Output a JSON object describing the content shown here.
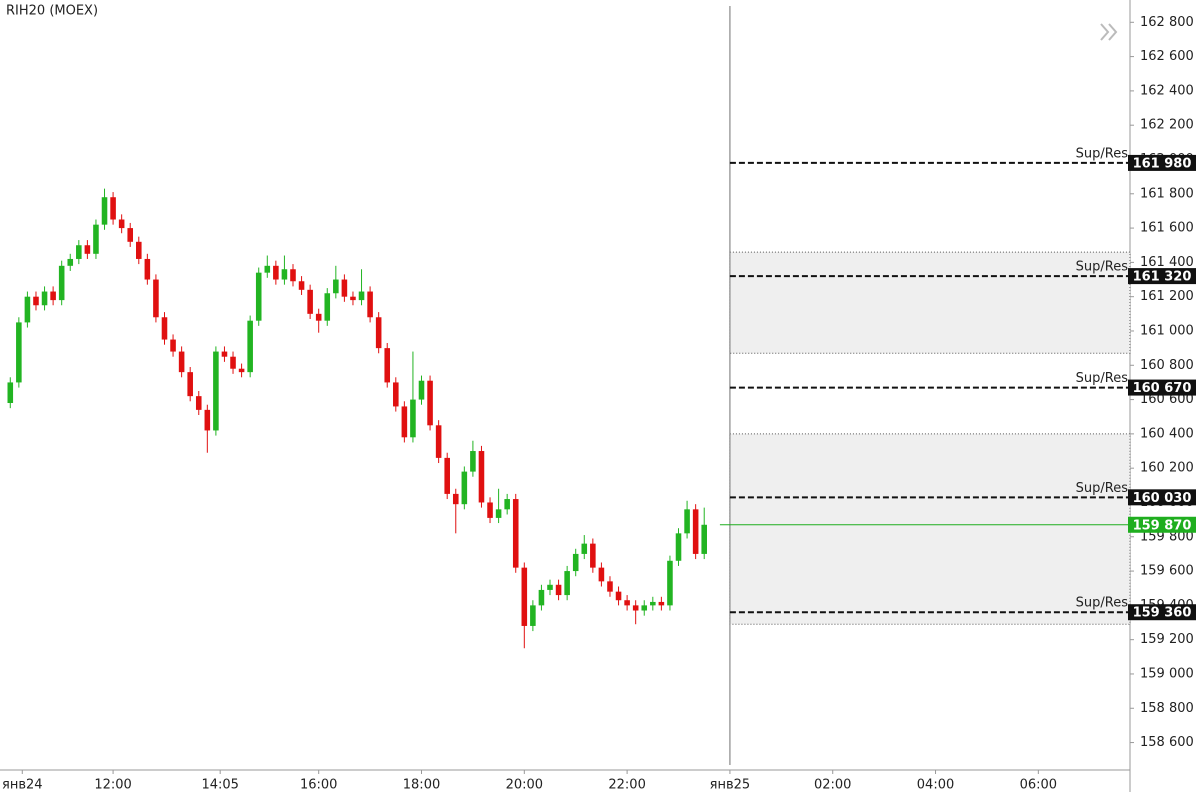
{
  "chart_data": {
    "type": "candlestick",
    "title": "RIH20 (MOEX)",
    "up_color": "#22b422",
    "down_color": "#e01010",
    "x": [
      600,
      610,
      620,
      630,
      640,
      650,
      660,
      670,
      680,
      690,
      700,
      710,
      720,
      730,
      740,
      750,
      760,
      770,
      780,
      790,
      800,
      810,
      820,
      830,
      840,
      850,
      860,
      870,
      880,
      890,
      900,
      910,
      920,
      930,
      940,
      950,
      960,
      970,
      980,
      990,
      1000,
      1010,
      1020,
      1030,
      1040,
      1050,
      1060,
      1070,
      1080,
      1090,
      1100,
      1110,
      1120,
      1130,
      1140,
      1150,
      1160,
      1170,
      1180,
      1190,
      1200,
      1210,
      1220,
      1230,
      1240,
      1250,
      1260,
      1270,
      1280,
      1290,
      1300,
      1310,
      1320,
      1330,
      1340,
      1350,
      1360,
      1370,
      1380,
      1390,
      1400,
      1410
    ],
    "open": [
      160580,
      160700,
      161050,
      161200,
      161150,
      161230,
      161180,
      161380,
      161420,
      161500,
      161450,
      161620,
      161780,
      161650,
      161600,
      161520,
      161420,
      161300,
      161080,
      160950,
      160880,
      160760,
      160620,
      160540,
      160420,
      160880,
      160850,
      160780,
      160760,
      161060,
      161340,
      161380,
      161300,
      161360,
      161290,
      161240,
      161100,
      161060,
      161220,
      161300,
      161200,
      161180,
      161230,
      161080,
      160900,
      160700,
      160560,
      160380,
      160600,
      160710,
      160450,
      160260,
      160050,
      159990,
      160180,
      160300,
      160000,
      159910,
      159960,
      160020,
      159620,
      159280,
      159400,
      159490,
      159520,
      159460,
      159600,
      159700,
      159760,
      159620,
      159540,
      159480,
      159430,
      159400,
      159370,
      159400,
      159420,
      159400,
      159660,
      159820,
      159960,
      159700
    ],
    "high": [
      160730,
      161080,
      161230,
      161230,
      161260,
      161260,
      161410,
      161450,
      161530,
      161530,
      161650,
      161830,
      161810,
      161680,
      161630,
      161550,
      161450,
      161330,
      161110,
      160980,
      160910,
      160790,
      160650,
      160570,
      160910,
      160910,
      160880,
      160810,
      161090,
      161370,
      161440,
      161410,
      161440,
      161390,
      161320,
      161270,
      161130,
      161250,
      161380,
      161330,
      161230,
      161360,
      161260,
      161110,
      160930,
      160730,
      160590,
      160880,
      160740,
      160740,
      160480,
      160290,
      160080,
      160210,
      160360,
      160330,
      160030,
      160080,
      160050,
      160050,
      159650,
      159430,
      159520,
      159550,
      159550,
      159630,
      159730,
      159810,
      159790,
      159650,
      159570,
      159510,
      159460,
      159430,
      159430,
      159450,
      159450,
      159690,
      159850,
      160010,
      159990,
      159970
    ],
    "low": [
      160550,
      160670,
      161020,
      161120,
      161120,
      161150,
      161150,
      161350,
      161390,
      161420,
      161420,
      161590,
      161620,
      161570,
      161490,
      161390,
      161270,
      161050,
      160920,
      160850,
      160730,
      160590,
      160510,
      160290,
      160390,
      160820,
      160750,
      160730,
      160730,
      161030,
      161310,
      161270,
      161270,
      161260,
      161210,
      161070,
      160990,
      161030,
      161190,
      161170,
      161150,
      161150,
      161050,
      160870,
      160670,
      160530,
      160350,
      160350,
      160570,
      160420,
      160230,
      160020,
      159820,
      159960,
      160150,
      159970,
      159880,
      159880,
      159930,
      159590,
      159150,
      159250,
      159370,
      159460,
      159430,
      159430,
      159570,
      159670,
      159590,
      159510,
      159450,
      159400,
      159370,
      159290,
      159340,
      159370,
      159370,
      159370,
      159630,
      159790,
      159670,
      159670
    ],
    "close": [
      160700,
      161050,
      161200,
      161150,
      161230,
      161180,
      161380,
      161420,
      161500,
      161450,
      161620,
      161780,
      161650,
      161600,
      161520,
      161420,
      161300,
      161080,
      160950,
      160880,
      160760,
      160620,
      160540,
      160420,
      160880,
      160850,
      160780,
      160760,
      161060,
      161340,
      161380,
      161300,
      161360,
      161290,
      161240,
      161100,
      161060,
      161220,
      161300,
      161200,
      161180,
      161230,
      161080,
      160900,
      160700,
      160560,
      160380,
      160600,
      160710,
      160450,
      160260,
      160050,
      159990,
      160180,
      160300,
      160000,
      159910,
      159960,
      160020,
      159620,
      159280,
      159400,
      159490,
      159520,
      159460,
      159600,
      159700,
      159760,
      159620,
      159540,
      159480,
      159430,
      159400,
      159370,
      159400,
      159420,
      159400,
      159660,
      159820,
      159960,
      159700,
      159870
    ],
    "xlim": [
      588,
      1907
    ],
    "xticks": [
      {
        "value": 614,
        "label": "янв24"
      },
      {
        "value": 720,
        "label": "12:00"
      },
      {
        "value": 845,
        "label": "14:05"
      },
      {
        "value": 960,
        "label": "16:00"
      },
      {
        "value": 1080,
        "label": "18:00"
      },
      {
        "value": 1200,
        "label": "20:00"
      },
      {
        "value": 1320,
        "label": "22:00"
      },
      {
        "value": 1440,
        "label": "янв25"
      },
      {
        "value": 1560,
        "label": "02:00"
      },
      {
        "value": 1680,
        "label": "04:00"
      },
      {
        "value": 1800,
        "label": "06:00"
      }
    ],
    "ylim": [
      158440,
      162930
    ],
    "yticks": [
      {
        "value": 158600,
        "label": "158 600"
      },
      {
        "value": 158800,
        "label": "158 800"
      },
      {
        "value": 159000,
        "label": "159 000"
      },
      {
        "value": 159200,
        "label": "159 200"
      },
      {
        "value": 159400,
        "label": "159 400"
      },
      {
        "value": 159600,
        "label": "159 600"
      },
      {
        "value": 159800,
        "label": "159 800"
      },
      {
        "value": 160000,
        "label": "160 000"
      },
      {
        "value": 160200,
        "label": "160 200"
      },
      {
        "value": 160400,
        "label": "160 400"
      },
      {
        "value": 160600,
        "label": "160 600"
      },
      {
        "value": 160800,
        "label": "160 800"
      },
      {
        "value": 161000,
        "label": "161 000"
      },
      {
        "value": 161200,
        "label": "161 200"
      },
      {
        "value": 161400,
        "label": "161 400"
      },
      {
        "value": 161600,
        "label": "161 600"
      },
      {
        "value": 161800,
        "label": "161 800"
      },
      {
        "value": 162000,
        "label": "162 000"
      },
      {
        "value": 162200,
        "label": "162 200"
      },
      {
        "value": 162400,
        "label": "162 400"
      },
      {
        "value": 162600,
        "label": "162 600"
      },
      {
        "value": 162800,
        "label": "162 800"
      }
    ],
    "separator_x": 1440,
    "zones": [
      {
        "low": 160870,
        "high": 161460
      },
      {
        "low": 159290,
        "high": 160400
      }
    ],
    "levels": [
      {
        "name": "Sup/Res",
        "value": 161980,
        "value_label": "161 980"
      },
      {
        "name": "Sup/Res",
        "value": 161320,
        "value_label": "161 320"
      },
      {
        "name": "Sup/Res",
        "value": 160670,
        "value_label": "160 670"
      },
      {
        "name": "Sup/Res",
        "value": 160030,
        "value_label": "160 030"
      },
      {
        "name": "Sup/Res",
        "value": 159360,
        "value_label": "159 360"
      }
    ],
    "current_price": {
      "value": 159870,
      "label": "159 870",
      "color": "#1fae1f"
    }
  }
}
